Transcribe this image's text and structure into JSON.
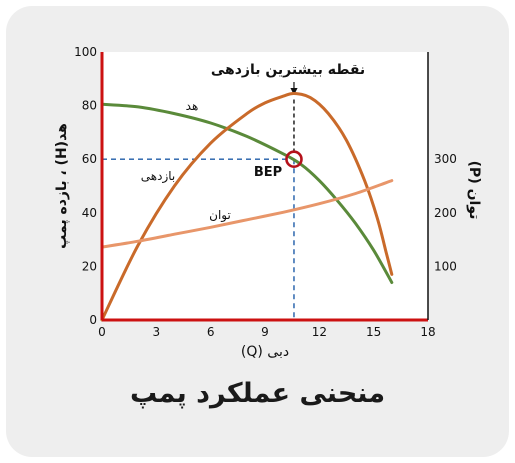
{
  "caption": "منحنی عملکرد پمپ",
  "colors": {
    "head": "#5a8a3a",
    "efficiency": "#c96a2a",
    "power": "#e8966a",
    "axis": "#cc1111",
    "guide": "#1f5ca8",
    "bep_marker": "#b5121b"
  },
  "chart_data": {
    "type": "line",
    "title": "",
    "xlabel": "دبی (Q)",
    "ylabel_left": "هد(H) ، بازده پمپ",
    "ylabel_right": "توان (P)",
    "xlim": [
      0,
      18
    ],
    "ylim_left": [
      0,
      100
    ],
    "ylim_right": [
      0,
      500
    ],
    "x_ticks": [
      0,
      3,
      6,
      9,
      12,
      15,
      18
    ],
    "y_ticks_left": [
      0,
      20,
      40,
      60,
      80,
      100
    ],
    "y_ticks_right": [
      100,
      200,
      300
    ],
    "grid": false,
    "series": [
      {
        "key": "head",
        "name": "هد",
        "axis": "left",
        "x": [
          0,
          2,
          4,
          6,
          8,
          10,
          11,
          12,
          13,
          14,
          15,
          16
        ],
        "y": [
          80.5,
          79.5,
          77,
          73.5,
          68.5,
          62,
          58,
          52,
          44.5,
          36,
          26,
          14
        ]
      },
      {
        "key": "efficiency",
        "name": "بازدهی",
        "axis": "left",
        "x": [
          0,
          2,
          4,
          6,
          8,
          9,
          10,
          10.6,
          11.5,
          12.5,
          13.5,
          14.5,
          15.2,
          15.7,
          16
        ],
        "y": [
          0,
          28,
          50,
          66,
          77,
          81,
          83.5,
          84.5,
          83,
          77,
          67,
          52,
          38,
          25,
          17
        ]
      },
      {
        "key": "power",
        "name": "توان",
        "axis": "right",
        "x": [
          0,
          2,
          4,
          6,
          8,
          10,
          12,
          14,
          16
        ],
        "y": [
          136,
          147,
          160,
          173,
          187,
          201,
          217,
          236,
          260
        ]
      }
    ],
    "bep": {
      "label": "BEP",
      "x": 10.6,
      "y": 60
    },
    "annotations": [
      {
        "key": "peak",
        "text": "نقطه بیشترین بازدهی",
        "x": 10.6,
        "y": 84.5
      }
    ]
  }
}
